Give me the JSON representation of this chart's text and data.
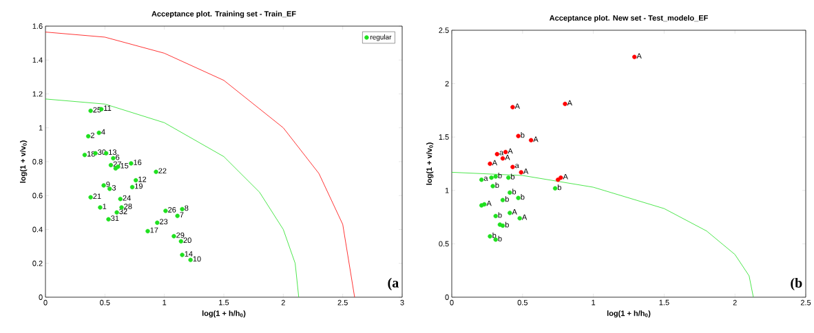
{
  "chart_data": [
    {
      "type": "scatter",
      "title": "Acceptance plot. Training set - Train_EF",
      "xlabel": "log(1 + h/h$_{0}$)",
      "ylabel": "log(1 + v/v$_{0}$)",
      "xlim": [
        0,
        3
      ],
      "ylim": [
        0,
        1.6
      ],
      "xticks": [
        0,
        0.5,
        1,
        1.5,
        2,
        2.5,
        3
      ],
      "yticks": [
        0,
        0.2,
        0.4,
        0.6,
        0.8,
        1,
        1.2,
        1.4,
        1.6
      ],
      "legend": "top right",
      "annotations": [
        "(a",
        {
          "text": "25",
          "x": 0.38,
          "y": 1.1
        },
        {
          "text": "11",
          "x": 0.47,
          "y": 1.11
        },
        {
          "text": "2",
          "x": 0.36,
          "y": 0.95
        },
        {
          "text": "4",
          "x": 0.45,
          "y": 0.97
        },
        {
          "text": "18",
          "x": 0.33,
          "y": 0.84
        },
        {
          "text": "30",
          "x": 0.42,
          "y": 0.85
        },
        {
          "text": "13",
          "x": 0.51,
          "y": 0.85
        },
        {
          "text": "27",
          "x": 0.55,
          "y": 0.78
        },
        {
          "text": "6",
          "x": 0.57,
          "y": 0.82
        },
        {
          "text": "15",
          "x": 0.61,
          "y": 0.77
        },
        {
          "text": "16",
          "x": 0.72,
          "y": 0.79
        },
        {
          "text": "22",
          "x": 0.93,
          "y": 0.74
        },
        {
          "text": "9",
          "x": 0.49,
          "y": 0.66
        },
        {
          "text": "3",
          "x": 0.54,
          "y": 0.64
        },
        {
          "text": "12",
          "x": 0.76,
          "y": 0.69
        },
        {
          "text": "19",
          "x": 0.73,
          "y": 0.65
        },
        {
          "text": "21",
          "x": 0.38,
          "y": 0.59
        },
        {
          "text": "24",
          "x": 0.63,
          "y": 0.58
        },
        {
          "text": "1",
          "x": 0.46,
          "y": 0.53
        },
        {
          "text": "28",
          "x": 0.64,
          "y": 0.53
        },
        {
          "text": "32",
          "x": 0.6,
          "y": 0.5
        },
        {
          "text": "31",
          "x": 0.53,
          "y": 0.46
        },
        {
          "text": "26",
          "x": 1.01,
          "y": 0.51
        },
        {
          "text": "7",
          "x": 1.11,
          "y": 0.48
        },
        {
          "text": "8",
          "x": 1.15,
          "y": 0.52
        },
        {
          "text": "23",
          "x": 0.94,
          "y": 0.44
        },
        {
          "text": "17",
          "x": 0.86,
          "y": 0.39
        },
        {
          "text": "29",
          "x": 1.08,
          "y": 0.36
        },
        {
          "text": "20",
          "x": 1.14,
          "y": 0.33
        },
        {
          "text": "14",
          "x": 1.15,
          "y": 0.25
        },
        {
          "text": "10",
          "x": 1.22,
          "y": 0.22
        }
      ],
      "series": [
        {
          "name": "regular",
          "color": "#1fe01f",
          "marker": "circle",
          "x": [
            0.38,
            0.47,
            0.36,
            0.45,
            0.33,
            0.42,
            0.51,
            0.55,
            0.57,
            0.59,
            0.61,
            0.72,
            0.93,
            0.49,
            0.54,
            0.76,
            0.73,
            0.38,
            0.63,
            0.46,
            0.64,
            0.6,
            0.53,
            1.01,
            1.11,
            1.15,
            0.94,
            0.86,
            1.08,
            1.14,
            1.15,
            1.22
          ],
          "values": [
            1.1,
            1.11,
            0.95,
            0.97,
            0.84,
            0.85,
            0.85,
            0.78,
            0.82,
            0.76,
            0.77,
            0.79,
            0.74,
            0.66,
            0.64,
            0.69,
            0.65,
            0.59,
            0.58,
            0.53,
            0.53,
            0.5,
            0.46,
            0.51,
            0.48,
            0.52,
            0.44,
            0.39,
            0.36,
            0.33,
            0.25,
            0.22
          ]
        },
        {
          "type": "line",
          "color": "#ff0000",
          "marker": "none",
          "x": [
            0,
            0.5,
            1.0,
            1.5,
            2.0,
            2.3,
            2.5,
            2.6
          ],
          "values": [
            1.565,
            1.535,
            1.44,
            1.28,
            1.0,
            0.73,
            0.43,
            0
          ]
        },
        {
          "type": "line",
          "color": "#1fe01f",
          "marker": "none",
          "x": [
            0,
            0.5,
            1.0,
            1.5,
            1.8,
            2.0,
            2.1,
            2.13
          ],
          "values": [
            1.17,
            1.14,
            1.03,
            0.83,
            0.62,
            0.4,
            0.2,
            0
          ]
        }
      ]
    },
    {
      "type": "scatter",
      "title": "Acceptance plot. New set - Test_modelo_EF",
      "xlabel": "log(1 + h/h$_{0}$)",
      "ylabel": "log(1 + v/v$_{0}$)",
      "xlim": [
        0,
        2.5
      ],
      "ylim": [
        0,
        2.5
      ],
      "xticks": [
        0,
        0.5,
        1,
        1.5,
        2,
        2.5
      ],
      "yticks": [
        0,
        0.5,
        1,
        1.5,
        2,
        2.5
      ],
      "annotations": [
        "(b",
        {
          "text": "A",
          "x": 1.29,
          "y": 2.25
        },
        {
          "text": "A",
          "x": 0.43,
          "y": 1.78
        },
        {
          "text": "A",
          "x": 0.8,
          "y": 1.81
        },
        {
          "text": "b",
          "x": 0.47,
          "y": 1.51
        },
        {
          "text": "A",
          "x": 0.56,
          "y": 1.47
        },
        {
          "text": "a",
          "x": 0.32,
          "y": 1.34
        },
        {
          "text": "A",
          "x": 0.38,
          "y": 1.36
        },
        {
          "text": "A",
          "x": 0.36,
          "y": 1.3
        },
        {
          "text": "A",
          "x": 0.27,
          "y": 1.25
        },
        {
          "text": "a",
          "x": 0.43,
          "y": 1.22
        },
        {
          "text": "A",
          "x": 0.49,
          "y": 1.17
        },
        {
          "text": "A",
          "x": 0.77,
          "y": 1.12
        },
        {
          "text": "a",
          "x": 0.21,
          "y": 1.1
        },
        {
          "text": "b",
          "x": 0.31,
          "y": 1.13
        },
        {
          "text": "b",
          "x": 0.29,
          "y": 1.04
        },
        {
          "text": "b",
          "x": 0.4,
          "y": 1.12
        },
        {
          "text": "b",
          "x": 0.73,
          "y": 1.02
        },
        {
          "text": "b",
          "x": 0.41,
          "y": 0.98
        },
        {
          "text": "b",
          "x": 0.36,
          "y": 0.91
        },
        {
          "text": "b",
          "x": 0.47,
          "y": 0.93
        },
        {
          "text": "A",
          "x": 0.23,
          "y": 0.87
        },
        {
          "text": "b",
          "x": 0.31,
          "y": 0.76
        },
        {
          "text": "A",
          "x": 0.41,
          "y": 0.79
        },
        {
          "text": "A",
          "x": 0.48,
          "y": 0.74
        },
        {
          "text": "b",
          "x": 0.36,
          "y": 0.67
        },
        {
          "text": "b",
          "x": 0.27,
          "y": 0.57
        },
        {
          "text": "b",
          "x": 0.31,
          "y": 0.54
        }
      ],
      "series": [
        {
          "color": "#ff0000",
          "marker": "circle",
          "x": [
            1.29,
            0.43,
            0.8,
            0.47,
            0.56,
            0.32,
            0.38,
            0.36,
            0.27,
            0.43,
            0.49,
            0.75,
            0.77
          ],
          "values": [
            2.25,
            1.78,
            1.81,
            1.51,
            1.47,
            1.34,
            1.36,
            1.3,
            1.25,
            1.22,
            1.17,
            1.1,
            1.12
          ]
        },
        {
          "color": "#1fe01f",
          "marker": "circle",
          "x": [
            0.21,
            0.28,
            0.31,
            0.29,
            0.4,
            0.73,
            0.41,
            0.36,
            0.47,
            0.21,
            0.23,
            0.31,
            0.41,
            0.48,
            0.34,
            0.36,
            0.27,
            0.31
          ],
          "values": [
            1.1,
            1.12,
            1.13,
            1.04,
            1.12,
            1.02,
            0.98,
            0.91,
            0.93,
            0.86,
            0.87,
            0.76,
            0.79,
            0.74,
            0.68,
            0.67,
            0.57,
            0.54
          ]
        },
        {
          "type": "line",
          "color": "#1fe01f",
          "marker": "none",
          "x": [
            0,
            0.5,
            1.0,
            1.5,
            1.8,
            2.0,
            2.1,
            2.13
          ],
          "values": [
            1.17,
            1.14,
            1.03,
            0.83,
            0.62,
            0.4,
            0.2,
            0
          ]
        }
      ]
    }
  ]
}
